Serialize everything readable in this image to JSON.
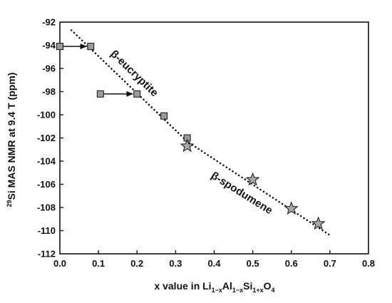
{
  "chart_data": {
    "type": "scatter",
    "xlim": [
      0.0,
      0.8
    ],
    "ylim": [
      -112,
      -92
    ],
    "x_ticks": [
      "0.0",
      "0.1",
      "0.2",
      "0.3",
      "0.4",
      "0.5",
      "0.6",
      "0.7",
      "0.8"
    ],
    "y_ticks": [
      "-92",
      "-94",
      "-96",
      "-98",
      "-100",
      "-102",
      "-104",
      "-106",
      "-108",
      "-110",
      "-112"
    ],
    "xlabel": {
      "main": "x value in Li",
      "sub1": "1−x",
      "mid1": "Al",
      "sub2": "1−x",
      "mid2": "Si",
      "sub3": "1+x",
      "mid3": "O",
      "sub4": "4"
    },
    "ylabel": {
      "sup": "29",
      "main": "Si MAS NMR at 9.4 T (ppm)"
    },
    "grid": false,
    "legend": false,
    "series": [
      {
        "marker": "square",
        "color": "#9a9a9a",
        "points": [
          [
            0.0,
            -94.1
          ],
          [
            0.08,
            -94.1
          ],
          [
            0.105,
            -98.2
          ],
          [
            0.2,
            -98.2
          ],
          [
            0.27,
            -100.1
          ],
          [
            0.33,
            -102.0
          ]
        ]
      },
      {
        "marker": "star",
        "color": "#a8a8a8",
        "points": [
          [
            0.33,
            -102.7
          ],
          [
            0.5,
            -105.6
          ],
          [
            0.6,
            -108.1
          ],
          [
            0.67,
            -109.4
          ]
        ]
      }
    ],
    "arrows": [
      {
        "from": [
          0.0,
          -94.1
        ],
        "to": [
          0.08,
          -94.1
        ]
      },
      {
        "from": [
          0.105,
          -98.2
        ],
        "to": [
          0.2,
          -98.2
        ]
      }
    ],
    "trend_line": [
      [
        0.03,
        -92.7
      ],
      [
        0.33,
        -102.3
      ],
      [
        0.705,
        -110.5
      ]
    ],
    "annotations": [
      {
        "text": "β-eucryptite",
        "x": 0.13,
        "y": -94.8,
        "angle": 44
      },
      {
        "text": "β-spodumene",
        "x": 0.39,
        "y": -105.4,
        "angle": 32
      }
    ]
  }
}
